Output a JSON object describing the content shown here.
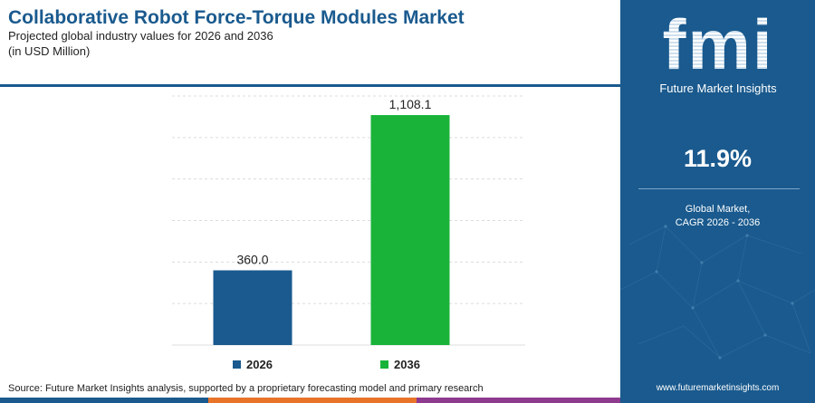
{
  "header": {
    "title": "Collaborative Robot Force-Torque Modules Market",
    "subtitle_line1": "Projected global industry values for 2026 and 2036",
    "subtitle_line2": "(in USD Million)"
  },
  "chart_data": {
    "type": "bar",
    "categories": [
      "2026",
      "2036"
    ],
    "values": [
      360.0,
      1108.1
    ],
    "value_labels": [
      "360.0",
      "1,108.1"
    ],
    "colors": [
      "#1a5a8e",
      "#1ab33a"
    ],
    "ylim": [
      0,
      1200
    ],
    "grid": true,
    "legend": "bottom"
  },
  "legend": [
    {
      "label": "2026",
      "color": "#1a5a8e"
    },
    {
      "label": "2036",
      "color": "#1ab33a"
    }
  ],
  "source": "Source: Future Market Insights analysis, supported by a proprietary forecasting model and primary research",
  "panel": {
    "logo_letters": "fmi",
    "logo_name": "Future Market Insights",
    "cagr_value": "11.9%",
    "cagr_label_line1": "Global Market,",
    "cagr_label_line2": "CAGR 2026 - 2036",
    "website": "www.futuremarketinsights.com"
  },
  "footer_colors": [
    "#1a5a8e",
    "#e8742a",
    "#8e3a8e"
  ]
}
